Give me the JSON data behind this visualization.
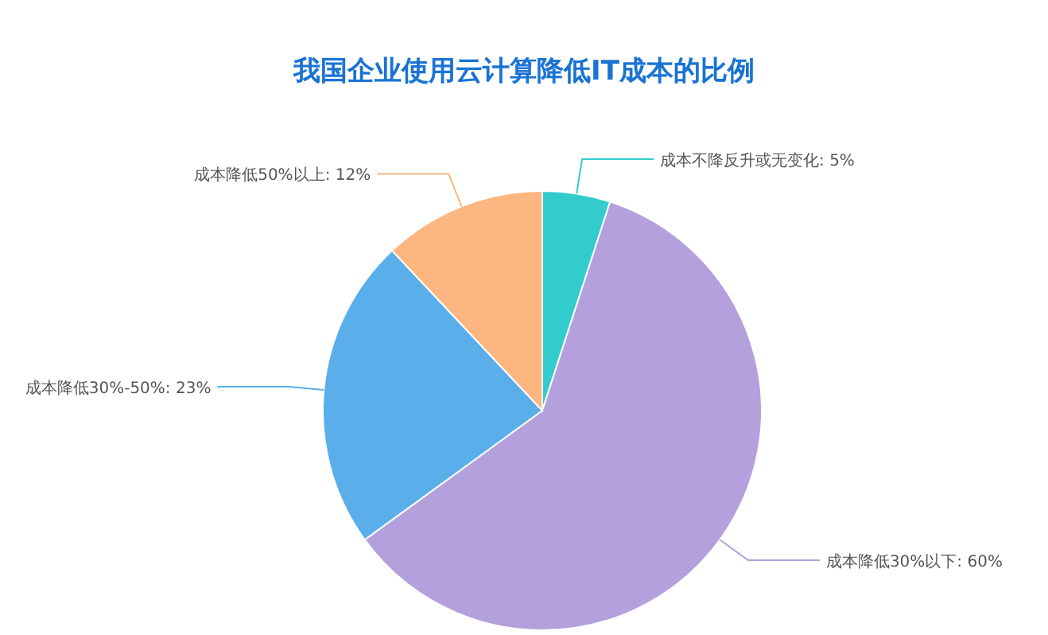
{
  "chart_data": {
    "type": "pie",
    "title": "我国企业使用云计算降低IT成本的比例",
    "categories": [
      "成本不降反升或无变化",
      "成本降低30%以下",
      "成本降低30%-50%",
      "成本降低50%以上"
    ],
    "values": [
      5,
      60,
      23,
      12
    ],
    "colors": [
      "#33cccc",
      "#b3a0dc",
      "#5aaeea",
      "#fdb67f"
    ],
    "value_labels": [
      ": 5%",
      ": 60%",
      ": 23%",
      ": 12%"
    ]
  }
}
